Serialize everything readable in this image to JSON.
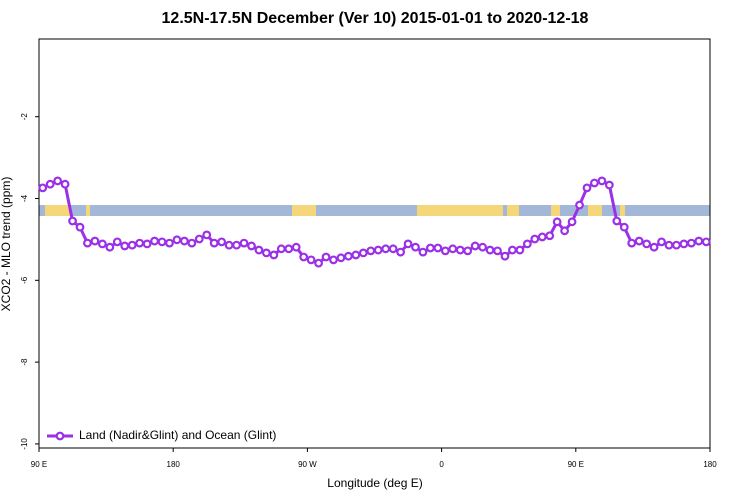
{
  "chart_data": {
    "type": "line",
    "title": "12.5N-17.5N December (Ver 10)   2015-01-01 to 2020-12-18",
    "xlabel": "Longitude (deg E)",
    "ylabel": "XCO2 - MLO trend (ppm)",
    "x": [
      92.5,
      97.5,
      102.5,
      107.5,
      112.5,
      117.5,
      122.5,
      127.5,
      132.5,
      137.5,
      142.5,
      147.5,
      152.5,
      157.5,
      162.5,
      167.5,
      172.5,
      177.5,
      182.5,
      187.5,
      192.5,
      197.5,
      202.5,
      207.5,
      212.5,
      217.5,
      222.5,
      227.5,
      232.5,
      237.5,
      242.5,
      247.5,
      252.5,
      257.5,
      262.5,
      267.5,
      272.5,
      277.5,
      282.5,
      287.5,
      292.5,
      297.5,
      302.5,
      307.5,
      312.5,
      317.5,
      322.5,
      327.5,
      332.5,
      337.5,
      342.5,
      347.5,
      352.5,
      357.5,
      362.5,
      367.5,
      372.5,
      377.5,
      382.5,
      387.5,
      392.5,
      397.5,
      402.5,
      407.5,
      412.5,
      417.5,
      422.5,
      427.5,
      432.5,
      437.5,
      442.5,
      447.5,
      452.5,
      457.5,
      462.5,
      467.5,
      472.5,
      477.5,
      482.5,
      487.5,
      492.5,
      497.5,
      502.5,
      507.5,
      512.5,
      517.5,
      522.5,
      527.5,
      532.5,
      537.5
    ],
    "series": [
      {
        "name": "Land (Nadir&Glint) and Ocean (Glint)",
        "color": "#9b30e6",
        "values": [
          -3.74,
          -3.65,
          -3.57,
          -3.65,
          -4.55,
          -4.7,
          -5.09,
          -5.04,
          -5.11,
          -5.19,
          -5.06,
          -5.16,
          -5.14,
          -5.09,
          -5.11,
          -5.04,
          -5.06,
          -5.09,
          -5.01,
          -5.04,
          -5.09,
          -4.99,
          -4.89,
          -5.09,
          -5.06,
          -5.14,
          -5.14,
          -5.09,
          -5.16,
          -5.26,
          -5.33,
          -5.38,
          -5.23,
          -5.23,
          -5.19,
          -5.43,
          -5.5,
          -5.58,
          -5.43,
          -5.5,
          -5.45,
          -5.41,
          -5.38,
          -5.33,
          -5.28,
          -5.26,
          -5.23,
          -5.23,
          -5.31,
          -5.11,
          -5.19,
          -5.31,
          -5.21,
          -5.21,
          -5.28,
          -5.23,
          -5.26,
          -5.28,
          -5.16,
          -5.19,
          -5.26,
          -5.28,
          -5.41,
          -5.26,
          -5.26,
          -5.11,
          -4.99,
          -4.94,
          -4.91,
          -4.57,
          -4.79,
          -4.57,
          -4.16,
          -3.74,
          -3.62,
          -3.57,
          -3.67,
          -4.55,
          -4.7,
          -5.09,
          -5.04,
          -5.11,
          -5.19,
          -5.06,
          -5.14,
          -5.14,
          -5.11,
          -5.09,
          -5.04,
          -5.06
        ]
      }
    ],
    "xlim": [
      90,
      540
    ],
    "xticks": [
      {
        "value": 90,
        "label": "90 E"
      },
      180,
      {
        "value": 270,
        "label": "90 W"
      },
      {
        "value": 360,
        "label": "0"
      },
      {
        "value": 450,
        "label": "90 E"
      },
      {
        "value": 540,
        "label": "180"
      }
    ],
    "ylim": [
      -10.1,
      -0.1
    ],
    "yticks": [
      -2,
      -4,
      -6,
      -8,
      -10
    ],
    "legend": "lower left"
  }
}
